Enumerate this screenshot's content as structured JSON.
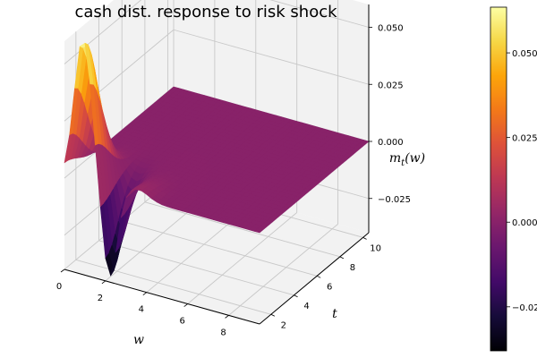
{
  "chart_data": {
    "type": "surface",
    "title": "cash dist. response to risk shock",
    "xlabel": "w",
    "ylabel": "t",
    "zlabel_main": "m",
    "zlabel_sub": "t",
    "zlabel_arg": "(w)",
    "xlim": [
      0,
      9.5
    ],
    "ylim": [
      1,
      10.5
    ],
    "zlim": [
      -0.04,
      0.06
    ],
    "x_ticks": [
      0,
      2,
      4,
      6,
      8
    ],
    "y_ticks": [
      2,
      4,
      6,
      8,
      10
    ],
    "z_ticks": [
      -0.025,
      0.0,
      0.025,
      0.05
    ],
    "z_tick_labels": [
      "−0.025",
      "0.000",
      "0.025",
      "0.050"
    ],
    "colorbar": {
      "colormap": "inferno",
      "range": [
        -0.038,
        0.0635
      ],
      "ticks": [
        -0.025,
        0.0,
        0.025,
        0.05
      ],
      "tick_labels": [
        "−0.025",
        "0.000",
        "0.025",
        "0.050"
      ]
    },
    "surface": {
      "description": "response m_t(w) over wealth w (0-9.5) and time t (1-10.5)",
      "x_range": [
        0,
        9.5
      ],
      "y_range": [
        1,
        10.5
      ],
      "peak": {
        "w": 0.9,
        "t": 1.0,
        "value": 0.0635
      },
      "trough": {
        "w": 2.2,
        "t": 1.0,
        "value": -0.038
      },
      "flat_value": 0.0
    },
    "grid": true
  }
}
